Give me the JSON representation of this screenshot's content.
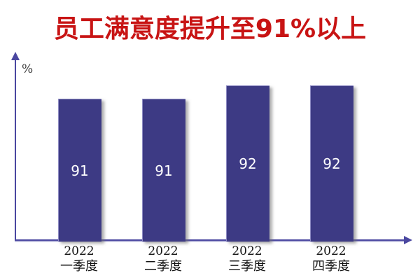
{
  "title": {
    "text": "员工满意度提升至91%以上"
  },
  "y_axis": {
    "unit_label": "%"
  },
  "colors": {
    "title": "#c81414",
    "bar": "#3d3a84",
    "axis": "#4a47a0",
    "value-label": "#ffffff"
  },
  "chart_data": {
    "type": "bar",
    "categories": [
      "2022 一季度",
      "2022 二季度",
      "2022 三季度",
      "2022 四季度"
    ],
    "values": [
      91,
      91,
      92,
      92
    ],
    "title": "员工满意度提升至91%以上",
    "xlabel": "",
    "ylabel": "%",
    "ylim": [
      80,
      95
    ],
    "value_labels_shown": true,
    "legend": "none",
    "grid": false
  }
}
